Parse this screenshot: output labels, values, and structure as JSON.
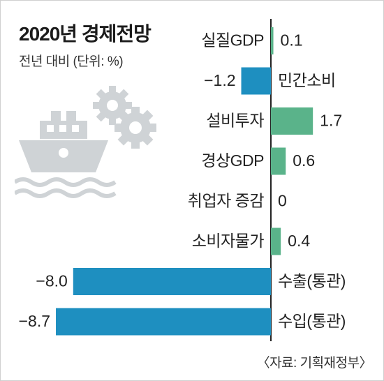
{
  "header": {
    "title": "2020년 경제전망",
    "subtitle": "전년 대비 (단위: %)"
  },
  "source": "〈자료: 기획재정부〉",
  "colors": {
    "positive": "#5ab38a",
    "negative": "#1e8fc0",
    "axis": "#222222",
    "illustration": "#cfd3d6"
  },
  "icons": [
    "ship-icon",
    "gear-icon",
    "gear-icon",
    "wave-icon"
  ],
  "chart_data": {
    "type": "bar",
    "orientation": "horizontal",
    "title": "2020년 경제전망",
    "subtitle": "전년 대비 (단위: %)",
    "categories": [
      "실질GDP",
      "민간소비",
      "설비투자",
      "경상GDP",
      "취업자 증감",
      "소비자물가",
      "수출(통관)",
      "수입(통관)"
    ],
    "values": [
      0.1,
      -1.2,
      1.7,
      0.6,
      0,
      0.4,
      -8.0,
      -8.7
    ],
    "value_labels": [
      "0.1",
      "−1.2",
      "1.7",
      "0.6",
      "0",
      "0.4",
      "−8.0",
      "−8.7"
    ],
    "xlim": [
      -8.7,
      1.7
    ],
    "grid": false,
    "legend": "none"
  }
}
